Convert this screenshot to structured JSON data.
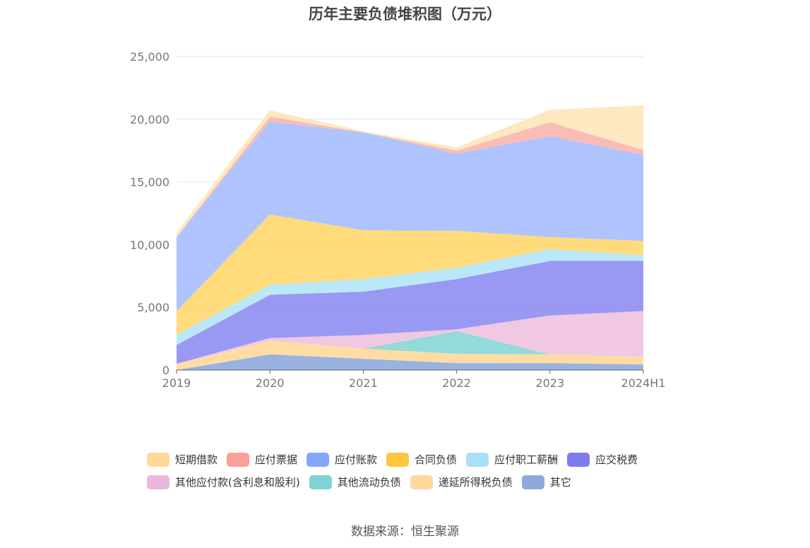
{
  "title": "历年主要负债堆积图（万元）",
  "source": "数据来源：恒生聚源",
  "chart_data": {
    "type": "area",
    "stacked": true,
    "x": [
      "2019",
      "2020",
      "2021",
      "2022",
      "2023",
      "2024H1"
    ],
    "ylim": [
      0,
      25000
    ],
    "yticks": [
      "0",
      "5,000",
      "10,000",
      "15,000",
      "20,000",
      "25,000"
    ],
    "grid": true,
    "legend_position": "bottom",
    "series": [
      {
        "name": "其它",
        "color": "#8eaadd",
        "values": [
          0,
          1250,
          900,
          550,
          550,
          450
        ]
      },
      {
        "name": "递延所得税负债",
        "color": "#ffd89a",
        "values": [
          450,
          1100,
          800,
          750,
          700,
          600
        ]
      },
      {
        "name": "其他流动负债",
        "color": "#88d6d6",
        "values": [
          0,
          0,
          0,
          1800,
          0,
          0
        ]
      },
      {
        "name": "其他应付款(含利息和股利)",
        "color": "#eec2de",
        "values": [
          50,
          200,
          1100,
          150,
          3100,
          3650
        ]
      },
      {
        "name": "应交税费",
        "color": "#8e8ef2",
        "values": [
          1500,
          3450,
          3450,
          4000,
          4350,
          4000
        ]
      },
      {
        "name": "应付职工薪酬",
        "color": "#b4e6f8",
        "values": [
          800,
          800,
          1000,
          900,
          950,
          450
        ]
      },
      {
        "name": "合同负债",
        "color": "#ffd76e",
        "values": [
          1900,
          5600,
          3900,
          2950,
          950,
          1150
        ]
      },
      {
        "name": "应付账款",
        "color": "#a6bdff",
        "values": [
          5900,
          7400,
          7800,
          6150,
          8050,
          6850
        ]
      },
      {
        "name": "应付票据",
        "color": "#fbb4ae",
        "values": [
          0,
          400,
          0,
          250,
          1100,
          400
        ]
      },
      {
        "name": "短期借款",
        "color": "#fde5b8",
        "values": [
          350,
          500,
          100,
          250,
          1000,
          3550
        ]
      }
    ],
    "legend_rows": [
      [
        {
          "name": "短期借款",
          "color": "#ffd89a"
        },
        {
          "name": "应付票据",
          "color": "#f9a198"
        },
        {
          "name": "应付账款",
          "color": "#86a6fa"
        },
        {
          "name": "合同负债",
          "color": "#fcc73f"
        },
        {
          "name": "应付职工薪酬",
          "color": "#a9e0f8"
        },
        {
          "name": "应交税费",
          "color": "#7c7cef"
        }
      ],
      [
        {
          "name": "其他应付款(含利息和股利)",
          "color": "#ebb8dc"
        },
        {
          "name": "其他流动负债",
          "color": "#7fd3d3"
        },
        {
          "name": "递延所得税负债",
          "color": "#ffd89a"
        },
        {
          "name": "其它",
          "color": "#8eaadd"
        }
      ]
    ]
  }
}
